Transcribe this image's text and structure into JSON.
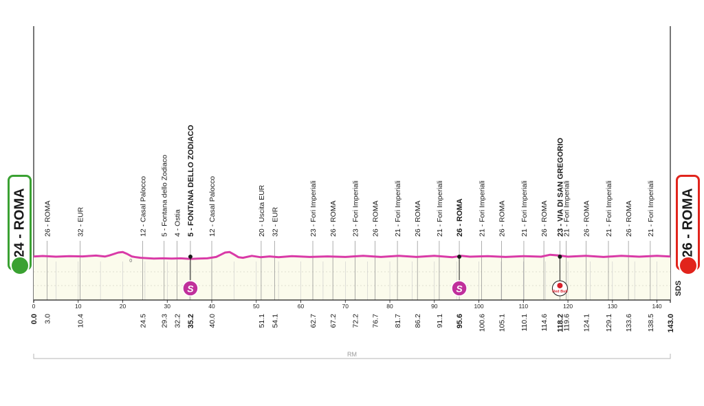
{
  "start": {
    "label": "24 - ROMA",
    "color": "#3aa132",
    "icon": "cyclist-icon"
  },
  "finish": {
    "label": "26 - ROMA",
    "color": "#e1241c",
    "icon": "finish-cyclist-icon"
  },
  "brand": {
    "sds_logo": "SDS",
    "redbull_logo": "Red Bull",
    "sprint_symbol": "S"
  },
  "colors": {
    "profile_line": "#d93aa7",
    "profile_fill": "#fbfbec",
    "sprint": "#c0309b",
    "grid": "#c9c9c9"
  },
  "chart_data": {
    "type": "area",
    "title": "",
    "xlabel": "",
    "ylabel": "",
    "xlim": [
      0,
      143
    ],
    "x_ticks": [
      0,
      10,
      20,
      30,
      40,
      50,
      60,
      70,
      80,
      90,
      100,
      110,
      120,
      130,
      140
    ],
    "grid": true,
    "profile": {
      "x": [
        0,
        2,
        5,
        8,
        11,
        14,
        16,
        17,
        19,
        20,
        21,
        22,
        23,
        24,
        25,
        27,
        29,
        31,
        33,
        35.2,
        37,
        39,
        41,
        42,
        43,
        44,
        45,
        46,
        47,
        49,
        51,
        53,
        55,
        58,
        62,
        66,
        70,
        74,
        78,
        82,
        86,
        90,
        94,
        96,
        98,
        102,
        106,
        110,
        114,
        116,
        118.2,
        120,
        124,
        128,
        132,
        136,
        140,
        143
      ],
      "y": [
        0.55,
        0.75,
        0.5,
        0.7,
        0.6,
        0.9,
        0.55,
        0.95,
        2.0,
        2.2,
        1.5,
        0.6,
        0.3,
        0.1,
        0.0,
        -0.2,
        -0.1,
        -0.2,
        -0.1,
        -0.3,
        -0.2,
        -0.1,
        0.4,
        1.2,
        2.0,
        2.2,
        1.3,
        0.3,
        0.1,
        0.8,
        0.3,
        0.6,
        0.3,
        0.7,
        0.4,
        0.6,
        0.4,
        0.8,
        0.4,
        0.8,
        0.4,
        0.8,
        0.3,
        0.8,
        0.5,
        0.7,
        0.4,
        0.7,
        0.5,
        1.2,
        0.9,
        0.5,
        0.8,
        0.4,
        0.8,
        0.5,
        0.8,
        0.55
      ]
    },
    "altitude_label": "0",
    "altitude_label_x": 21.5,
    "base_label": "RM",
    "km_labels": [
      {
        "km": 0.0,
        "label": "0.0",
        "bold": true
      },
      {
        "km": 3.0,
        "label": "3.0"
      },
      {
        "km": 10.4,
        "label": "10.4"
      },
      {
        "km": 24.5,
        "label": "24.5"
      },
      {
        "km": 29.3,
        "label": "29.3"
      },
      {
        "km": 32.2,
        "label": "32.2"
      },
      {
        "km": 35.2,
        "label": "35.2",
        "bold": true
      },
      {
        "km": 40.0,
        "label": "40.0"
      },
      {
        "km": 51.1,
        "label": "51.1"
      },
      {
        "km": 54.1,
        "label": "54.1"
      },
      {
        "km": 62.7,
        "label": "62.7"
      },
      {
        "km": 67.2,
        "label": "67.2"
      },
      {
        "km": 72.2,
        "label": "72.2"
      },
      {
        "km": 76.7,
        "label": "76.7"
      },
      {
        "km": 81.7,
        "label": "81.7"
      },
      {
        "km": 86.2,
        "label": "86.2"
      },
      {
        "km": 91.1,
        "label": "91.1"
      },
      {
        "km": 95.6,
        "label": "95.6",
        "bold": true
      },
      {
        "km": 100.6,
        "label": "100.6"
      },
      {
        "km": 105.1,
        "label": "105.1"
      },
      {
        "km": 110.1,
        "label": "110.1"
      },
      {
        "km": 114.6,
        "label": "114.6"
      },
      {
        "km": 118.2,
        "label": "118.2",
        "bold": true
      },
      {
        "km": 119.6,
        "label": "119.6"
      },
      {
        "km": 124.1,
        "label": "124.1"
      },
      {
        "km": 129.1,
        "label": "129.1"
      },
      {
        "km": 133.6,
        "label": "133.6"
      },
      {
        "km": 138.5,
        "label": "138.5"
      },
      {
        "km": 143.0,
        "label": "143.0",
        "bold": true
      }
    ],
    "place_labels": [
      {
        "km": 3.0,
        "label": "26 - ROMA"
      },
      {
        "km": 10.4,
        "label": "32 - EUR"
      },
      {
        "km": 24.5,
        "label": "12 - Casal Palocco"
      },
      {
        "km": 29.3,
        "label": "5 - Fontana dello Zodiaco"
      },
      {
        "km": 32.2,
        "label": "4 - Ostia"
      },
      {
        "km": 35.2,
        "label": "5 - FONTANA DELLO ZODIACO",
        "bold": true
      },
      {
        "km": 40.0,
        "label": "12 - Casal Palocco"
      },
      {
        "km": 51.1,
        "label": "20 - Uscita EUR"
      },
      {
        "km": 54.1,
        "label": "32 - EUR"
      },
      {
        "km": 62.7,
        "label": "23 - Fori Imperiali"
      },
      {
        "km": 67.2,
        "label": "26 - ROMA"
      },
      {
        "km": 72.2,
        "label": "23 - Fori Imperiali"
      },
      {
        "km": 76.7,
        "label": "26 - ROMA"
      },
      {
        "km": 81.7,
        "label": "21 - Fori Imperiali"
      },
      {
        "km": 86.2,
        "label": "26 - ROMA"
      },
      {
        "km": 91.1,
        "label": "21 - Fori Imperiali"
      },
      {
        "km": 95.6,
        "label": "26 - ROMA",
        "bold": true
      },
      {
        "km": 100.6,
        "label": "21 - Fori Imperiali"
      },
      {
        "km": 105.1,
        "label": "26 - ROMA"
      },
      {
        "km": 110.1,
        "label": "21 - Fori Imperiali"
      },
      {
        "km": 114.6,
        "label": "26 - ROMA"
      },
      {
        "km": 118.2,
        "label": "23 - VIA DI SAN GREGORIO",
        "bold": true
      },
      {
        "km": 119.6,
        "label": "21 - Fori Imperiali"
      },
      {
        "km": 124.1,
        "label": "26 - ROMA"
      },
      {
        "km": 129.1,
        "label": "21 - Fori Imperiali"
      },
      {
        "km": 133.6,
        "label": "26 - ROMA"
      },
      {
        "km": 138.5,
        "label": "21 - Fori Imperiali"
      }
    ],
    "markers": [
      {
        "km": 35.2,
        "type": "sprint"
      },
      {
        "km": 95.6,
        "type": "sprint"
      },
      {
        "km": 118.2,
        "type": "redbull"
      }
    ]
  }
}
